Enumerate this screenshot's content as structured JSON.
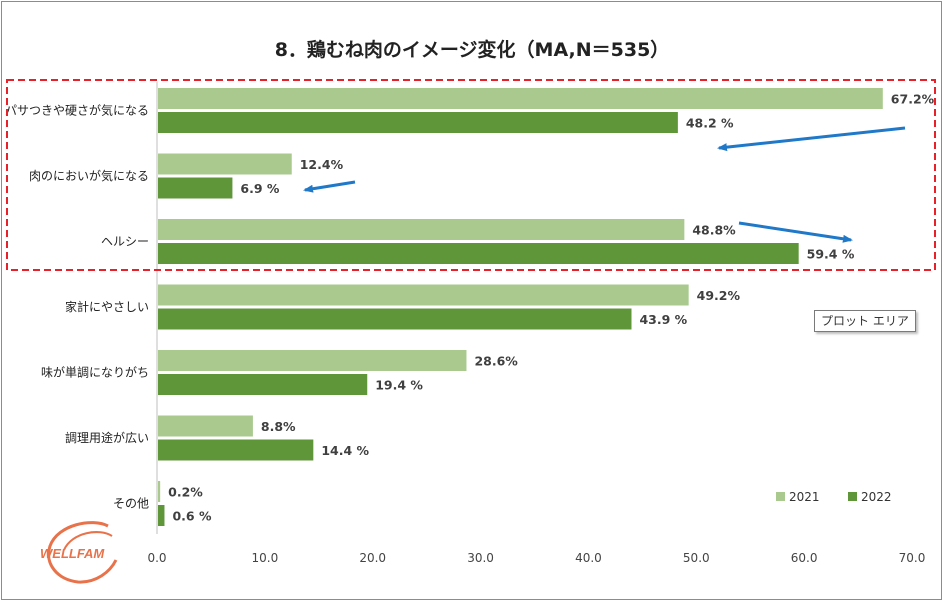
{
  "chart_data": {
    "type": "bar",
    "orientation": "horizontal",
    "title": "8．鶏むね肉のイメージ変化（MA,N＝535）",
    "categories": [
      "パサつきや硬さが気になる",
      "肉のにおいが気になる",
      "ヘルシー",
      "家計にやさしい",
      "味が単調になりがち",
      "調理用途が広い",
      "その他"
    ],
    "series": [
      {
        "name": "2021",
        "values": [
          67.2,
          12.4,
          48.8,
          49.2,
          28.6,
          8.8,
          0.2
        ],
        "labels": [
          "67.2%",
          "12.4%",
          "48.8%",
          "49.2%",
          "28.6%",
          "8.8%",
          "0.2%"
        ],
        "color": "#a9c98e"
      },
      {
        "name": "2022",
        "values": [
          48.2,
          6.9,
          59.4,
          43.9,
          19.4,
          14.4,
          0.6
        ],
        "labels": [
          "48.2 %",
          "6.9 %",
          "59.4 %",
          "43.9 %",
          "19.4 %",
          "14.4 %",
          "0.6 %"
        ],
        "color": "#5f963a"
      }
    ],
    "xlim": [
      0,
      70
    ],
    "xticks": [
      "0.0",
      "10.0",
      "20.0",
      "30.0",
      "40.0",
      "50.0",
      "60.0",
      "70.0"
    ],
    "grid": false,
    "legend": "bottom-right",
    "highlight": {
      "categories": [
        "パサつきや硬さが気になる",
        "肉のにおいが気になる",
        "ヘルシー"
      ],
      "color": "#e8202a",
      "style": "dashed"
    },
    "arrows": [
      {
        "category": "パサつきや硬さが気になる",
        "direction": "decrease",
        "color": "#1f78c8"
      },
      {
        "category": "肉のにおいが気になる",
        "direction": "decrease",
        "color": "#1f78c8"
      },
      {
        "category": "ヘルシー",
        "direction": "increase",
        "color": "#1f78c8"
      }
    ]
  },
  "tooltip": {
    "text": "プロット エリア"
  },
  "logo": {
    "text": "WELLFAM",
    "color": "#e8724a"
  }
}
